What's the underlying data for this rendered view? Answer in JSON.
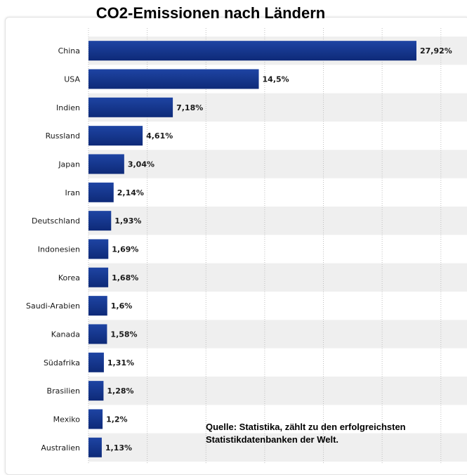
{
  "page": {
    "title": "CO2-Emissionen nach Ländern",
    "source_note": "Quelle: Statistika, zählt zu den erfolgreichsten Statistikdatenbanken der Welt."
  },
  "colors": {
    "bar_top": "#1e44a3",
    "bar_bottom": "#0e2a78",
    "stripe": "#efefef",
    "grid": "#bfbfbf"
  },
  "chart_data": {
    "type": "bar",
    "orientation": "horizontal",
    "title": "CO2-Emissionen nach Ländern",
    "xlabel": "",
    "ylabel": "",
    "unit": "%",
    "xlim": [
      0,
      31.5
    ],
    "grid": true,
    "categories": [
      "China",
      "USA",
      "Indien",
      "Russland",
      "Japan",
      "Iran",
      "Deutschland",
      "Indonesien",
      "Korea",
      "Saudi-Arabien",
      "Kanada",
      "Südafrika",
      "Brasilien",
      "Mexiko",
      "Australien"
    ],
    "values": [
      27.92,
      14.5,
      7.18,
      4.61,
      3.04,
      2.14,
      1.93,
      1.69,
      1.68,
      1.6,
      1.58,
      1.31,
      1.28,
      1.2,
      1.13
    ],
    "value_labels": [
      "27,92%",
      "14,5%",
      "7,18%",
      "4,61%",
      "3,04%",
      "2,14%",
      "1,93%",
      "1,69%",
      "1,68%",
      "1,6%",
      "1,58%",
      "1,31%",
      "1,28%",
      "1,2%",
      "1,13%"
    ]
  }
}
